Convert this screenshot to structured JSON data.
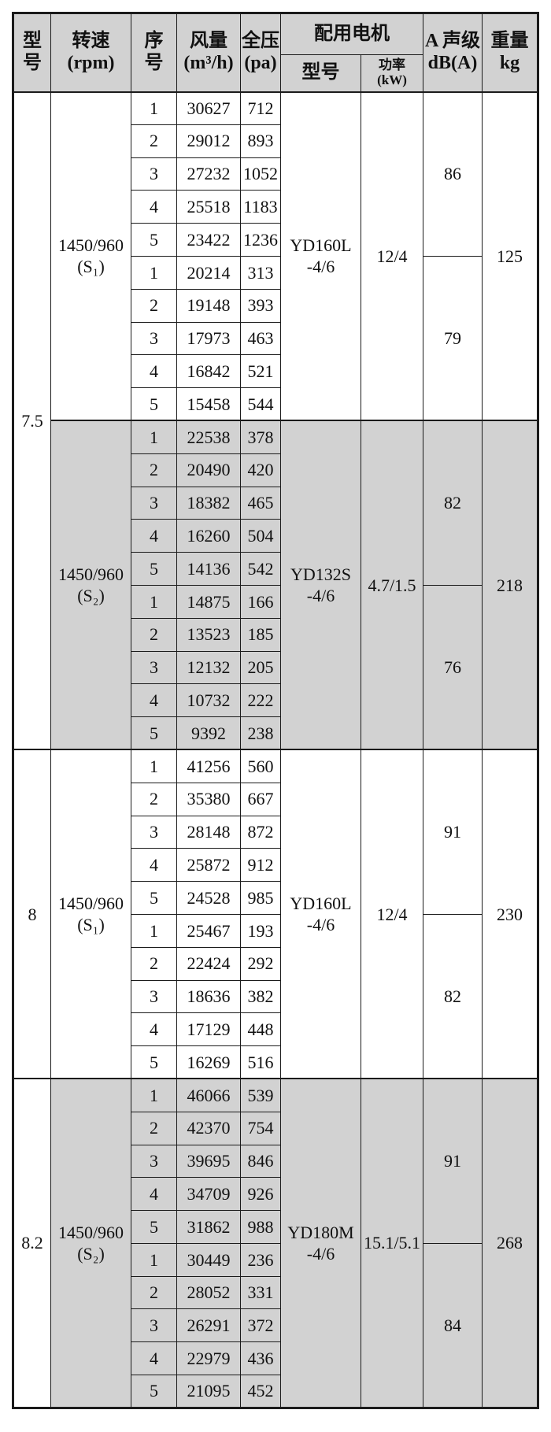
{
  "table_header": {
    "model": "型\n号",
    "speed": "转速\n(rpm)",
    "seq": "序\n号",
    "airflow": "风量\n(m³/h)",
    "pressure": "全压\n(pa)",
    "motor_group": "配用电机",
    "motor_model": "型号",
    "motor_power": "功率\n(kW)",
    "noise": "A 声级\ndB(A)",
    "weight": "重量\nkg"
  },
  "colors": {
    "shaded_row_bg": "#d2d2d2",
    "header_bg": "#d2d2d2",
    "border": "#1b1b1b"
  },
  "groups": [
    {
      "model": "7.5",
      "speed": "1450/960\n(S₁)",
      "shaded": false,
      "rows": [
        {
          "seq": "1",
          "airflow": "30627",
          "pressure": "712"
        },
        {
          "seq": "2",
          "airflow": "29012",
          "pressure": "893"
        },
        {
          "seq": "3",
          "airflow": "27232",
          "pressure": "1052"
        },
        {
          "seq": "4",
          "airflow": "25518",
          "pressure": "1183"
        },
        {
          "seq": "5",
          "airflow": "23422",
          "pressure": "1236"
        },
        {
          "seq": "1",
          "airflow": "20214",
          "pressure": "313"
        },
        {
          "seq": "2",
          "airflow": "19148",
          "pressure": "393"
        },
        {
          "seq": "3",
          "airflow": "17973",
          "pressure": "463"
        },
        {
          "seq": "4",
          "airflow": "16842",
          "pressure": "521"
        },
        {
          "seq": "5",
          "airflow": "15458",
          "pressure": "544"
        }
      ],
      "motor_model": "YD160L\n-4/6",
      "motor_power": "12/4",
      "noise_top": "86",
      "noise_bottom": "79",
      "weight": "125"
    },
    {
      "model": null,
      "speed": "1450/960\n(S₂)",
      "shaded": true,
      "rows": [
        {
          "seq": "1",
          "airflow": "22538",
          "pressure": "378"
        },
        {
          "seq": "2",
          "airflow": "20490",
          "pressure": "420"
        },
        {
          "seq": "3",
          "airflow": "18382",
          "pressure": "465"
        },
        {
          "seq": "4",
          "airflow": "16260",
          "pressure": "504"
        },
        {
          "seq": "5",
          "airflow": "14136",
          "pressure": "542"
        },
        {
          "seq": "1",
          "airflow": "14875",
          "pressure": "166"
        },
        {
          "seq": "2",
          "airflow": "13523",
          "pressure": "185"
        },
        {
          "seq": "3",
          "airflow": "12132",
          "pressure": "205"
        },
        {
          "seq": "4",
          "airflow": "10732",
          "pressure": "222"
        },
        {
          "seq": "5",
          "airflow": "9392",
          "pressure": "238"
        }
      ],
      "motor_model": "YD132S\n-4/6",
      "motor_power": "4.7/1.5",
      "noise_top": "82",
      "noise_bottom": "76",
      "weight": "218"
    },
    {
      "model": "8",
      "speed": "1450/960\n(S₁)",
      "shaded": false,
      "rows": [
        {
          "seq": "1",
          "airflow": "41256",
          "pressure": "560"
        },
        {
          "seq": "2",
          "airflow": "35380",
          "pressure": "667"
        },
        {
          "seq": "3",
          "airflow": "28148",
          "pressure": "872"
        },
        {
          "seq": "4",
          "airflow": "25872",
          "pressure": "912"
        },
        {
          "seq": "5",
          "airflow": "24528",
          "pressure": "985"
        },
        {
          "seq": "1",
          "airflow": "25467",
          "pressure": "193"
        },
        {
          "seq": "2",
          "airflow": "22424",
          "pressure": "292"
        },
        {
          "seq": "3",
          "airflow": "18636",
          "pressure": "382"
        },
        {
          "seq": "4",
          "airflow": "17129",
          "pressure": "448"
        },
        {
          "seq": "5",
          "airflow": "16269",
          "pressure": "516"
        }
      ],
      "motor_model": "YD160L\n-4/6",
      "motor_power": "12/4",
      "noise_top": "91",
      "noise_bottom": "82",
      "weight": "230"
    },
    {
      "model": "8.2",
      "speed": "1450/960\n(S₂)",
      "shaded": true,
      "rows": [
        {
          "seq": "1",
          "airflow": "46066",
          "pressure": "539"
        },
        {
          "seq": "2",
          "airflow": "42370",
          "pressure": "754"
        },
        {
          "seq": "3",
          "airflow": "39695",
          "pressure": "846"
        },
        {
          "seq": "4",
          "airflow": "34709",
          "pressure": "926"
        },
        {
          "seq": "5",
          "airflow": "31862",
          "pressure": "988"
        },
        {
          "seq": "1",
          "airflow": "30449",
          "pressure": "236"
        },
        {
          "seq": "2",
          "airflow": "28052",
          "pressure": "331"
        },
        {
          "seq": "3",
          "airflow": "26291",
          "pressure": "372"
        },
        {
          "seq": "4",
          "airflow": "22979",
          "pressure": "436"
        },
        {
          "seq": "5",
          "airflow": "21095",
          "pressure": "452"
        }
      ],
      "motor_model": "YD180M\n-4/6",
      "motor_power": "15.1/5.1",
      "noise_top": "91",
      "noise_bottom": "84",
      "weight": "268"
    }
  ]
}
